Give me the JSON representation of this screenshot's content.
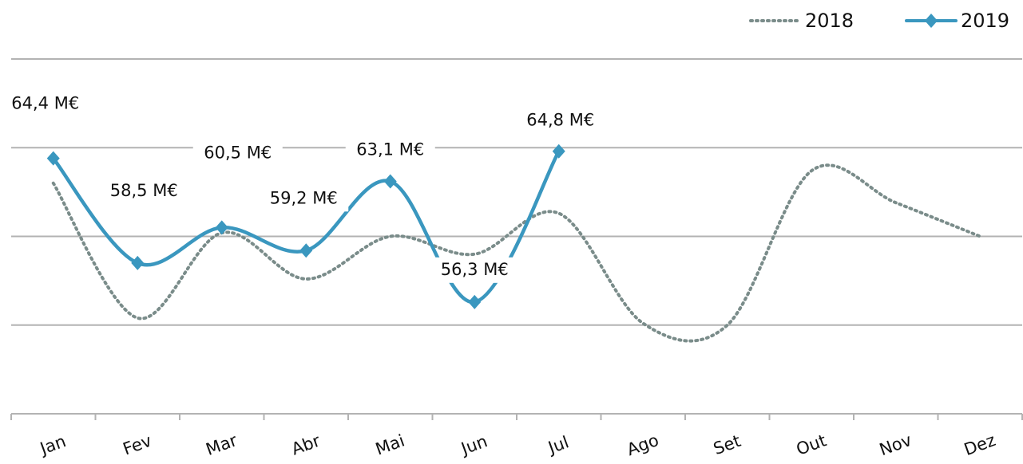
{
  "chart_data": {
    "type": "line",
    "categories": [
      "Jan",
      "Fev",
      "Mar",
      "Abr",
      "Mai",
      "Jun",
      "Jul",
      "Ago",
      "Set",
      "Out",
      "Nov",
      "Dez"
    ],
    "series": [
      {
        "name": "2018",
        "color": "#7a8c8a",
        "values": [
          63.0,
          55.4,
          60.2,
          57.6,
          60.0,
          59.0,
          61.3,
          55.1,
          55.0,
          63.7,
          61.9,
          60.0
        ]
      },
      {
        "name": "2019",
        "color": "#3a97bf",
        "values": [
          64.4,
          58.5,
          60.5,
          59.2,
          63.1,
          56.3,
          64.8,
          null,
          null,
          null,
          null,
          null
        ],
        "value_labels": [
          "64,4 M€",
          "58,5 M€",
          "60,5 M€",
          "59,2 M€",
          "63,1 M€",
          "56,3 M€",
          "64,8 M€",
          null,
          null,
          null,
          null,
          null
        ]
      }
    ],
    "ylim": [
      50,
      70
    ],
    "yticks": [
      50,
      55,
      60,
      65,
      70
    ],
    "grid": true,
    "legend": "top-right"
  }
}
